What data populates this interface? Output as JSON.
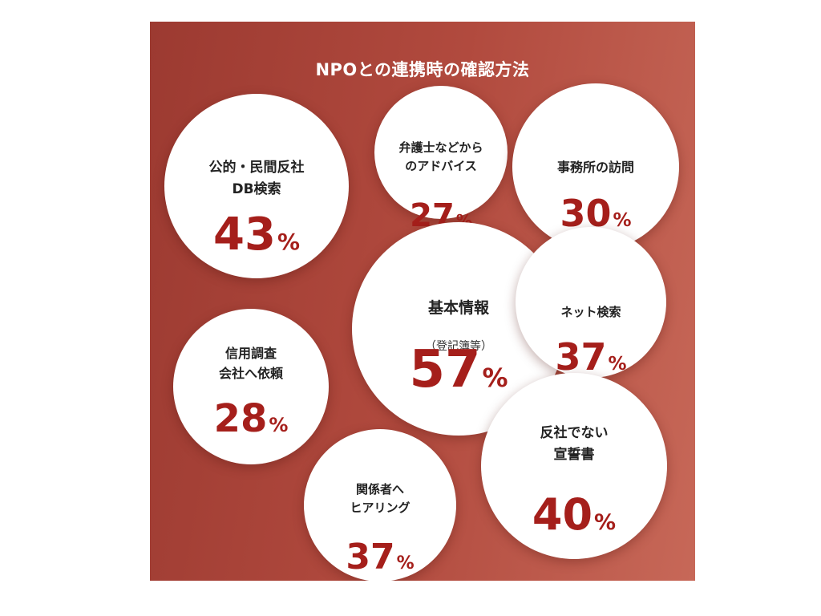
{
  "chart_data": {
    "type": "bubble",
    "title": "NPOとの連携時の確認方法",
    "unit": "%",
    "items": [
      {
        "label": "公的・民間反社\nDB検索",
        "value": 43
      },
      {
        "label": "弁護士などから\nのアドバイス",
        "value": 27
      },
      {
        "label": "事務所の訪問",
        "value": 30
      },
      {
        "label": "基本情報",
        "sublabel": "（登記簿等）",
        "value": 57
      },
      {
        "label": "ネット検索",
        "value": 37
      },
      {
        "label": "信用調査\n会社へ依頼",
        "value": 28
      },
      {
        "label": "反社でない\n宣誓書",
        "value": 40
      },
      {
        "label": "関係者へ\nヒアリング",
        "value": 37
      }
    ]
  },
  "colors": {
    "background_left": "#9c3a31",
    "background_right": "#c76858",
    "bubble": "#ffffff",
    "value_text": "#a51f1b",
    "label_text": "#222222"
  }
}
